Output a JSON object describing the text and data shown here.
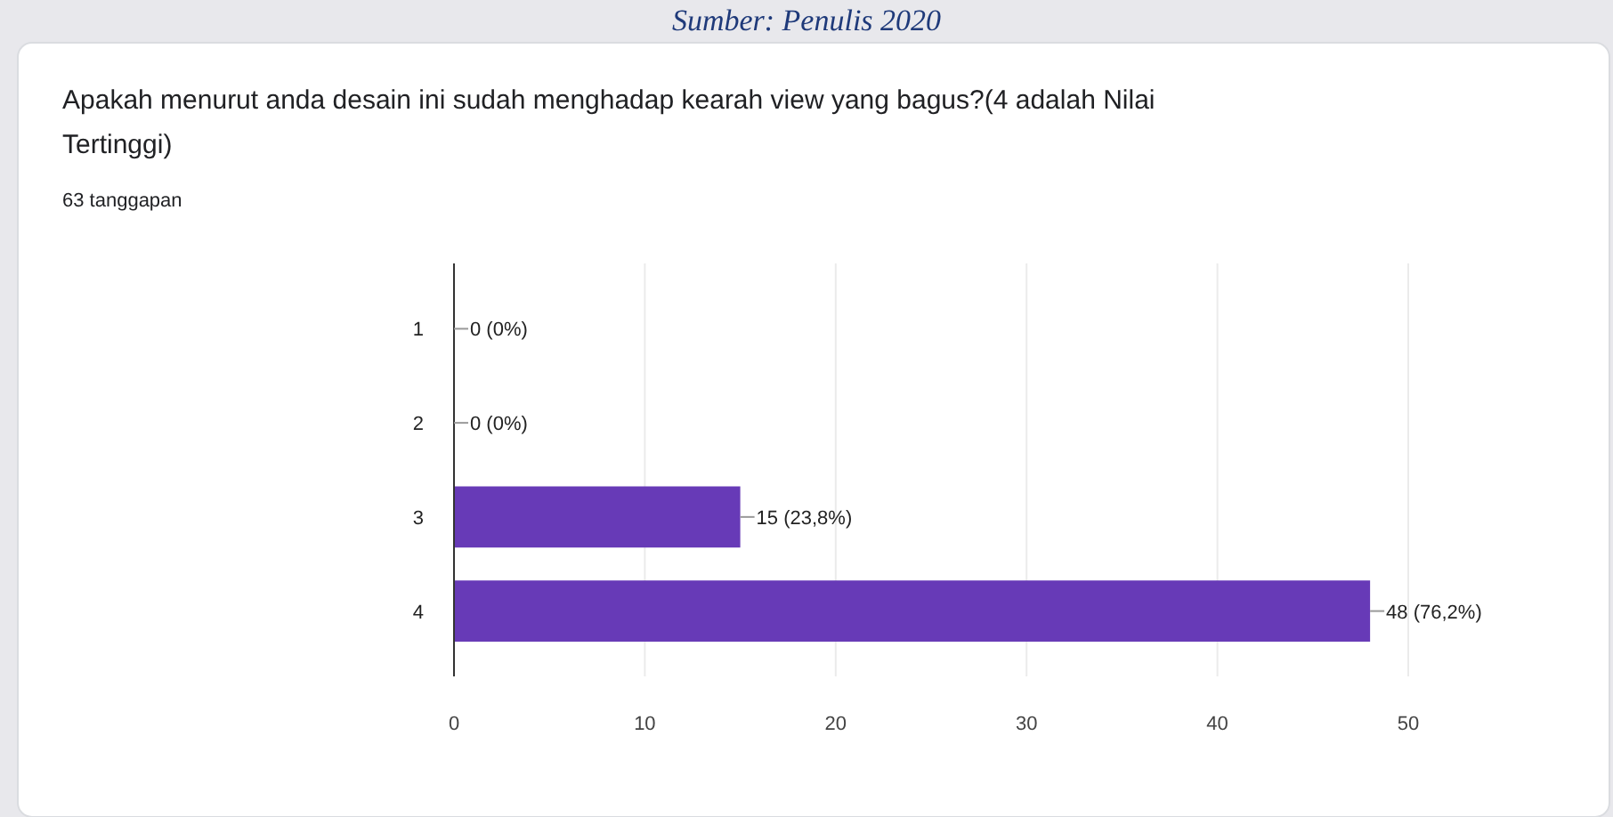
{
  "chart_data": {
    "type": "bar",
    "orientation": "horizontal",
    "title": "Apakah menurut anda desain ini sudah menghadap kearah view yang bagus?(4 adalah Nilai Tertinggi)",
    "subtitle": "63 tanggapan",
    "annotations": [
      "Sumber: Penulis 2020"
    ],
    "categories": [
      "1",
      "2",
      "3",
      "4"
    ],
    "values": [
      0,
      0,
      15,
      48
    ],
    "value_labels": [
      "0 (0%)",
      "0 (0%)",
      "15 (23,8%)",
      "48 (76,2%)"
    ],
    "color": "#673ab7",
    "xlim": [
      0,
      50
    ],
    "xticks": [
      0,
      10,
      20,
      30,
      40,
      50
    ],
    "grid": "x"
  }
}
